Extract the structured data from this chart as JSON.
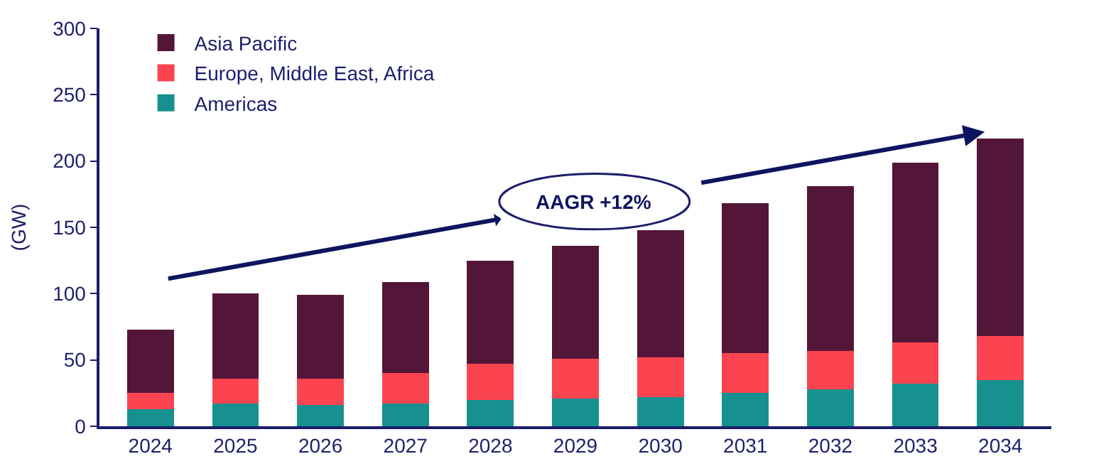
{
  "chart_data": {
    "type": "bar",
    "stacked": true,
    "ylabel": "(GW)",
    "categories": [
      "2024",
      "2025",
      "2026",
      "2027",
      "2028",
      "2029",
      "2030",
      "2031",
      "2032",
      "2033",
      "2034"
    ],
    "series": [
      {
        "name": "Americas",
        "color": "#17918f",
        "values": [
          13,
          17,
          16,
          17,
          20,
          21,
          22,
          25,
          28,
          32,
          35
        ]
      },
      {
        "name": "Europe, Middle East, Africa",
        "color": "#fc4450",
        "values": [
          12,
          19,
          20,
          23,
          27,
          30,
          30,
          30,
          29,
          31,
          33
        ]
      },
      {
        "name": "Asia Pacific",
        "color": "#531638",
        "values": [
          48,
          64,
          63,
          69,
          78,
          85,
          96,
          113,
          124,
          136,
          149
        ]
      }
    ],
    "ylim": [
      0,
      300
    ],
    "yticks": [
      0,
      50,
      100,
      150,
      200,
      250,
      300
    ],
    "legend": "top left",
    "annotations": [
      "AAGR +12%"
    ]
  }
}
